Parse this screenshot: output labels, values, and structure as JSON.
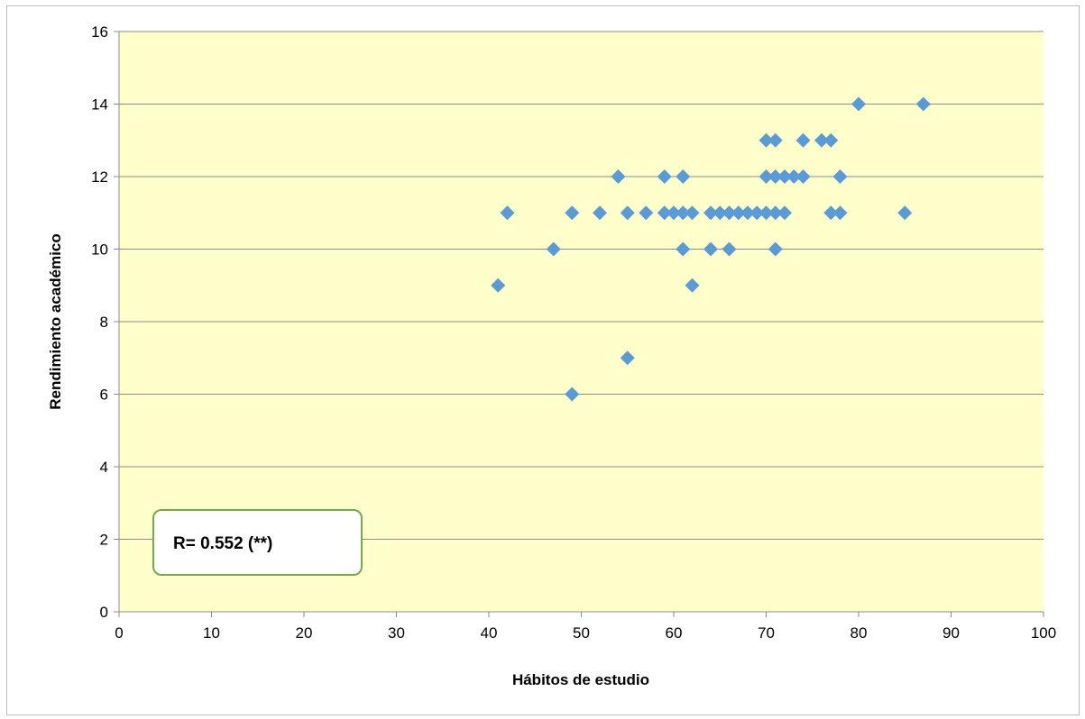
{
  "chart_data": {
    "type": "scatter",
    "title": "",
    "xlabel": "Hábitos de estudio",
    "ylabel": "Rendimiento académico",
    "xlim": [
      0,
      100
    ],
    "ylim": [
      0,
      16
    ],
    "xticks": [
      0,
      10,
      20,
      30,
      40,
      50,
      60,
      70,
      80,
      90,
      100
    ],
    "yticks": [
      0,
      2,
      4,
      6,
      8,
      10,
      12,
      14,
      16
    ],
    "grid": "horizontal",
    "legend": "none",
    "colors": {
      "marker": "#5B9BD5",
      "plot_background": "#FFFFCC",
      "annotation_border": "#70AD47"
    },
    "annotation": "R= 0.552 (**)",
    "points": [
      {
        "x": 41,
        "y": 9
      },
      {
        "x": 42,
        "y": 11
      },
      {
        "x": 47,
        "y": 10
      },
      {
        "x": 49,
        "y": 11
      },
      {
        "x": 49,
        "y": 6
      },
      {
        "x": 52,
        "y": 11
      },
      {
        "x": 54,
        "y": 12
      },
      {
        "x": 55,
        "y": 11
      },
      {
        "x": 55,
        "y": 7
      },
      {
        "x": 57,
        "y": 11
      },
      {
        "x": 59,
        "y": 12
      },
      {
        "x": 59,
        "y": 11
      },
      {
        "x": 60,
        "y": 11
      },
      {
        "x": 61,
        "y": 12
      },
      {
        "x": 61,
        "y": 11
      },
      {
        "x": 61,
        "y": 10
      },
      {
        "x": 62,
        "y": 11
      },
      {
        "x": 62,
        "y": 9
      },
      {
        "x": 64,
        "y": 11
      },
      {
        "x": 64,
        "y": 10
      },
      {
        "x": 65,
        "y": 11
      },
      {
        "x": 66,
        "y": 11
      },
      {
        "x": 66,
        "y": 10
      },
      {
        "x": 67,
        "y": 11
      },
      {
        "x": 68,
        "y": 11
      },
      {
        "x": 69,
        "y": 11
      },
      {
        "x": 70,
        "y": 13
      },
      {
        "x": 70,
        "y": 12
      },
      {
        "x": 70,
        "y": 11
      },
      {
        "x": 71,
        "y": 13
      },
      {
        "x": 71,
        "y": 12
      },
      {
        "x": 71,
        "y": 11
      },
      {
        "x": 71,
        "y": 10
      },
      {
        "x": 72,
        "y": 12
      },
      {
        "x": 72,
        "y": 11
      },
      {
        "x": 73,
        "y": 12
      },
      {
        "x": 74,
        "y": 13
      },
      {
        "x": 74,
        "y": 12
      },
      {
        "x": 76,
        "y": 13
      },
      {
        "x": 77,
        "y": 13
      },
      {
        "x": 77,
        "y": 11
      },
      {
        "x": 78,
        "y": 12
      },
      {
        "x": 78,
        "y": 11
      },
      {
        "x": 80,
        "y": 14
      },
      {
        "x": 85,
        "y": 11
      },
      {
        "x": 87,
        "y": 14
      }
    ]
  }
}
